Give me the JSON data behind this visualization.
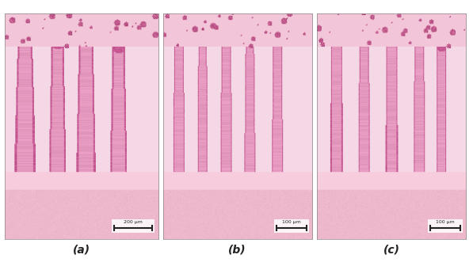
{
  "figure_width": 5.97,
  "figure_height": 3.36,
  "dpi": 100,
  "background_color": "#ffffff",
  "num_panels": 3,
  "labels": [
    "(a)",
    "(b)",
    "(c)"
  ],
  "scale_bars": [
    "200 μm",
    "100 μm",
    "100 μm"
  ],
  "label_fontsize": 10,
  "label_style": "italic",
  "panel_bg_color": "#f5c8d0",
  "outer_bg": "#ffffff",
  "gap_color": "#ffffff",
  "panel_border_color": "#888888",
  "scalebar_color": "#222222",
  "scalebar_text_color": "#222222",
  "label_color": "#222222",
  "villi_color_dark": "#c0457a",
  "villi_color_mid": "#e87aa8",
  "villi_color_light": "#f0b8cc",
  "bottom_layer_color": "#f2a0b8",
  "top_lumen_color": "#f5d0de"
}
